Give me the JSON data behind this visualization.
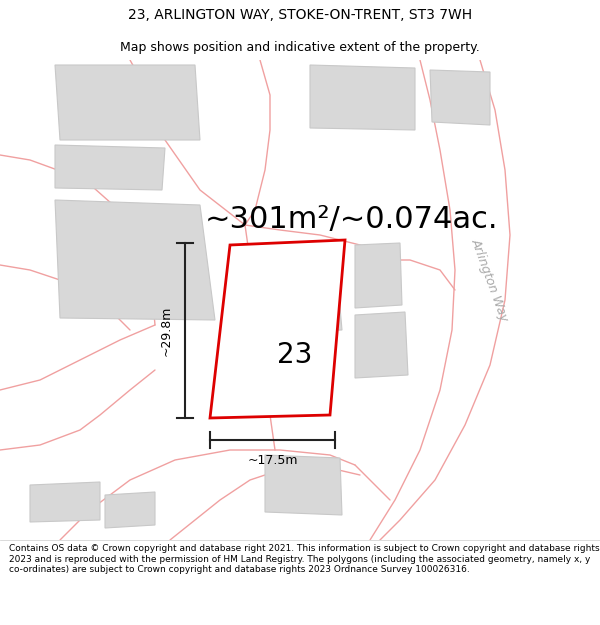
{
  "title": "23, ARLINGTON WAY, STOKE-ON-TRENT, ST3 7WH",
  "subtitle": "Map shows position and indicative extent of the property.",
  "area_text": "~301m²/~0.074ac.",
  "width_label": "~17.5m",
  "height_label": "~29.8m",
  "number_label": "23",
  "road_label": "Arlington Way",
  "footer": "Contains OS data © Crown copyright and database right 2021. This information is subject to Crown copyright and database rights 2023 and is reproduced with the permission of HM Land Registry. The polygons (including the associated geometry, namely x, y co-ordinates) are subject to Crown copyright and database rights 2023 Ordnance Survey 100026316.",
  "bg_color": "#ffffff",
  "map_bg": "#ffffff",
  "plot_fill": "#ffffff",
  "plot_edge": "#dd0000",
  "building_fill": "#d8d8d8",
  "building_edge": "#c8c8c8",
  "road_line_color": "#f0a0a0",
  "dim_line_color": "#222222",
  "title_fontsize": 10,
  "subtitle_fontsize": 9,
  "area_fontsize": 22,
  "label_fontsize": 9,
  "road_label_fontsize": 9,
  "footer_fontsize": 6.5,
  "number_fontsize": 20
}
